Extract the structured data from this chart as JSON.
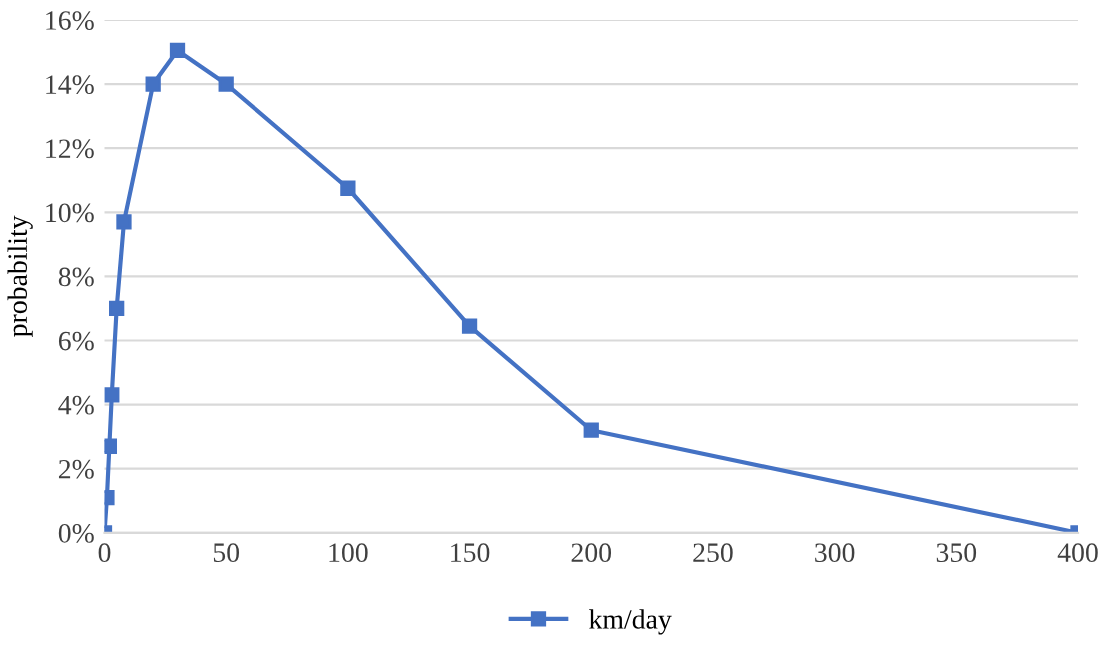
{
  "chart_data": {
    "type": "line",
    "ylabel": "probability",
    "x": [
      0,
      1,
      2,
      3,
      5,
      8,
      20,
      30,
      50,
      100,
      150,
      200,
      400
    ],
    "series": [
      {
        "name": "km/day",
        "color": "#4472c4",
        "values": [
          0,
          1.1,
          2.7,
          4.3,
          7.0,
          9.7,
          14.0,
          15.05,
          14.0,
          10.75,
          6.45,
          3.2,
          0
        ]
      }
    ],
    "xlim": [
      0,
      400
    ],
    "xticks": [
      0,
      50,
      100,
      150,
      200,
      250,
      300,
      350,
      400
    ],
    "ylim": [
      0,
      16
    ],
    "yticks": [
      {
        "value": 0,
        "label": "0%"
      },
      {
        "value": 2,
        "label": "2%"
      },
      {
        "value": 4,
        "label": "4%"
      },
      {
        "value": 6,
        "label": "6%"
      },
      {
        "value": 8,
        "label": "8%"
      },
      {
        "value": 10,
        "label": "10%"
      },
      {
        "value": 12,
        "label": "12%"
      },
      {
        "value": 14,
        "label": "14%"
      },
      {
        "value": 16,
        "label": "16%"
      }
    ],
    "grid": "y",
    "legend": "bottom",
    "marker": "square",
    "line_style": "solid"
  }
}
